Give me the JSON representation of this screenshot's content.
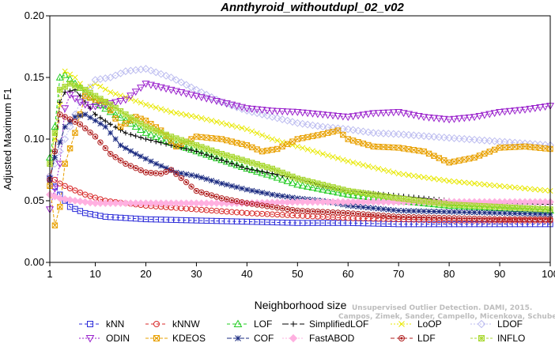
{
  "chart_data": {
    "type": "line",
    "title": "Annthyroid_withoutdupl_02_v02",
    "xlabel": "Neighborhood size",
    "ylabel": "Adjusted Maximum F1",
    "xlim": [
      1,
      100
    ],
    "ylim": [
      0.0,
      0.2
    ],
    "xticks": [
      "1",
      "10",
      "20",
      "30",
      "40",
      "50",
      "60",
      "70",
      "80",
      "90",
      "100"
    ],
    "yticks": [
      "0.00",
      "0.05",
      "0.10",
      "0.15",
      "0.20"
    ],
    "grid": false,
    "legend_position": "bottom",
    "watermark": [
      "Unsupervised Outlier Detection. DAMI, 2015.",
      "Campos, Zimek, Sander, Campello, Micenkova, Schubert, Assent, Houle"
    ],
    "series": [
      {
        "name": "kNN",
        "color": "#2a2ad8",
        "marker": "square",
        "points": [
          [
            1,
            0.068
          ],
          [
            3,
            0.055
          ],
          [
            5,
            0.045
          ],
          [
            8,
            0.04
          ],
          [
            12,
            0.037
          ],
          [
            20,
            0.035
          ],
          [
            30,
            0.034
          ],
          [
            40,
            0.033
          ],
          [
            50,
            0.032
          ],
          [
            60,
            0.032
          ],
          [
            70,
            0.031
          ],
          [
            80,
            0.031
          ],
          [
            90,
            0.031
          ],
          [
            100,
            0.031
          ]
        ]
      },
      {
        "name": "kNNW",
        "color": "#d82a2a",
        "marker": "circle",
        "points": [
          [
            1,
            0.07
          ],
          [
            3,
            0.064
          ],
          [
            5,
            0.06
          ],
          [
            8,
            0.055
          ],
          [
            12,
            0.05
          ],
          [
            20,
            0.046
          ],
          [
            30,
            0.043
          ],
          [
            40,
            0.04
          ],
          [
            50,
            0.038
          ],
          [
            60,
            0.036
          ],
          [
            70,
            0.035
          ],
          [
            80,
            0.034
          ],
          [
            90,
            0.034
          ],
          [
            100,
            0.034
          ]
        ]
      },
      {
        "name": "LOF",
        "color": "#22cc22",
        "marker": "triangle-up",
        "points": [
          [
            1,
            0.085
          ],
          [
            2,
            0.11
          ],
          [
            3,
            0.15
          ],
          [
            4,
            0.152
          ],
          [
            6,
            0.145
          ],
          [
            8,
            0.138
          ],
          [
            10,
            0.13
          ],
          [
            13,
            0.122
          ],
          [
            16,
            0.115
          ],
          [
            20,
            0.105
          ],
          [
            25,
            0.097
          ],
          [
            30,
            0.09
          ],
          [
            35,
            0.083
          ],
          [
            40,
            0.076
          ],
          [
            45,
            0.07
          ],
          [
            50,
            0.063
          ],
          [
            60,
            0.055
          ],
          [
            70,
            0.05
          ],
          [
            80,
            0.046
          ],
          [
            90,
            0.044
          ],
          [
            100,
            0.042
          ]
        ]
      },
      {
        "name": "SimplifiedLOF",
        "color": "#000000",
        "marker": "plus",
        "points": [
          [
            1,
            0.065
          ],
          [
            2,
            0.09
          ],
          [
            3,
            0.13
          ],
          [
            4,
            0.138
          ],
          [
            6,
            0.14
          ],
          [
            8,
            0.13
          ],
          [
            10,
            0.12
          ],
          [
            13,
            0.112
          ],
          [
            16,
            0.105
          ],
          [
            20,
            0.1
          ],
          [
            25,
            0.095
          ],
          [
            30,
            0.09
          ],
          [
            35,
            0.083
          ],
          [
            40,
            0.076
          ],
          [
            45,
            0.072
          ],
          [
            50,
            0.068
          ],
          [
            55,
            0.062
          ],
          [
            60,
            0.058
          ],
          [
            70,
            0.054
          ],
          [
            80,
            0.05
          ],
          [
            90,
            0.048
          ],
          [
            100,
            0.047
          ]
        ]
      },
      {
        "name": "LoOP",
        "color": "#e8e800",
        "marker": "x",
        "points": [
          [
            1,
            0.08
          ],
          [
            2,
            0.1
          ],
          [
            4,
            0.155
          ],
          [
            6,
            0.15
          ],
          [
            8,
            0.14
          ],
          [
            10,
            0.145
          ],
          [
            13,
            0.138
          ],
          [
            16,
            0.134
          ],
          [
            20,
            0.128
          ],
          [
            25,
            0.122
          ],
          [
            30,
            0.118
          ],
          [
            35,
            0.113
          ],
          [
            40,
            0.108
          ],
          [
            45,
            0.1
          ],
          [
            50,
            0.094
          ],
          [
            55,
            0.088
          ],
          [
            60,
            0.082
          ],
          [
            65,
            0.077
          ],
          [
            70,
            0.072
          ],
          [
            80,
            0.066
          ],
          [
            90,
            0.062
          ],
          [
            100,
            0.058
          ]
        ]
      },
      {
        "name": "LDOF",
        "color": "#bdbdf0",
        "marker": "diamond",
        "points": [
          [
            1,
            0.07
          ],
          [
            4,
            0.1
          ],
          [
            7,
            0.13
          ],
          [
            10,
            0.148
          ],
          [
            13,
            0.15
          ],
          [
            16,
            0.155
          ],
          [
            20,
            0.157
          ],
          [
            25,
            0.15
          ],
          [
            30,
            0.14
          ],
          [
            35,
            0.13
          ],
          [
            40,
            0.123
          ],
          [
            45,
            0.118
          ],
          [
            50,
            0.113
          ],
          [
            55,
            0.11
          ],
          [
            60,
            0.108
          ],
          [
            65,
            0.105
          ],
          [
            70,
            0.104
          ],
          [
            80,
            0.101
          ],
          [
            90,
            0.098
          ],
          [
            100,
            0.095
          ]
        ]
      },
      {
        "name": "ODIN",
        "color": "#9a22cc",
        "marker": "triangle-down",
        "points": [
          [
            1,
            0.043
          ],
          [
            2,
            0.06
          ],
          [
            3,
            0.08
          ],
          [
            4,
            0.125
          ],
          [
            5,
            0.136
          ],
          [
            7,
            0.13
          ],
          [
            9,
            0.126
          ],
          [
            12,
            0.128
          ],
          [
            16,
            0.132
          ],
          [
            20,
            0.145
          ],
          [
            25,
            0.14
          ],
          [
            30,
            0.135
          ],
          [
            35,
            0.13
          ],
          [
            40,
            0.125
          ],
          [
            45,
            0.123
          ],
          [
            50,
            0.122
          ],
          [
            55,
            0.12
          ],
          [
            60,
            0.118
          ],
          [
            65,
            0.121
          ],
          [
            70,
            0.122
          ],
          [
            75,
            0.118
          ],
          [
            80,
            0.116
          ],
          [
            85,
            0.118
          ],
          [
            90,
            0.122
          ],
          [
            95,
            0.124
          ],
          [
            100,
            0.127
          ]
        ]
      },
      {
        "name": "KDEOS",
        "color": "#e8a000",
        "marker": "square-x",
        "points": [
          [
            1,
            0.062
          ],
          [
            2,
            0.03
          ],
          [
            3,
            0.045
          ],
          [
            4,
            0.08
          ],
          [
            6,
            0.105
          ],
          [
            8,
            0.135
          ],
          [
            10,
            0.132
          ],
          [
            12,
            0.13
          ],
          [
            15,
            0.11
          ],
          [
            18,
            0.118
          ],
          [
            20,
            0.115
          ],
          [
            23,
            0.107
          ],
          [
            26,
            0.094
          ],
          [
            30,
            0.102
          ],
          [
            35,
            0.1
          ],
          [
            40,
            0.095
          ],
          [
            43,
            0.09
          ],
          [
            46,
            0.092
          ],
          [
            50,
            0.1
          ],
          [
            55,
            0.104
          ],
          [
            58,
            0.107
          ],
          [
            60,
            0.1
          ],
          [
            65,
            0.094
          ],
          [
            70,
            0.093
          ],
          [
            75,
            0.09
          ],
          [
            80,
            0.081
          ],
          [
            85,
            0.085
          ],
          [
            90,
            0.093
          ],
          [
            95,
            0.094
          ],
          [
            100,
            0.092
          ]
        ]
      },
      {
        "name": "COF",
        "color": "#1a2a80",
        "marker": "star",
        "points": [
          [
            1,
            0.068
          ],
          [
            2,
            0.085
          ],
          [
            4,
            0.11
          ],
          [
            6,
            0.118
          ],
          [
            8,
            0.12
          ],
          [
            10,
            0.115
          ],
          [
            12,
            0.11
          ],
          [
            15,
            0.095
          ],
          [
            18,
            0.088
          ],
          [
            22,
            0.08
          ],
          [
            26,
            0.073
          ],
          [
            30,
            0.07
          ],
          [
            35,
            0.064
          ],
          [
            40,
            0.059
          ],
          [
            45,
            0.055
          ],
          [
            50,
            0.052
          ],
          [
            55,
            0.05
          ],
          [
            60,
            0.046
          ],
          [
            70,
            0.042
          ],
          [
            80,
            0.041
          ],
          [
            90,
            0.04
          ],
          [
            100,
            0.039
          ]
        ]
      },
      {
        "name": "FastABOD",
        "color": "#ffb0e0",
        "marker": "diamond-filled",
        "points": [
          [
            1,
            0.055
          ],
          [
            3,
            0.052
          ],
          [
            6,
            0.05
          ],
          [
            10,
            0.048
          ],
          [
            20,
            0.048
          ],
          [
            30,
            0.048
          ],
          [
            40,
            0.048
          ],
          [
            50,
            0.049
          ],
          [
            60,
            0.049
          ],
          [
            70,
            0.049
          ],
          [
            80,
            0.049
          ],
          [
            90,
            0.049
          ],
          [
            100,
            0.049
          ]
        ]
      },
      {
        "name": "LDF",
        "color": "#b02020",
        "marker": "circle-filled",
        "points": [
          [
            1,
            0.067
          ],
          [
            2,
            0.09
          ],
          [
            3,
            0.12
          ],
          [
            5,
            0.116
          ],
          [
            7,
            0.112
          ],
          [
            10,
            0.102
          ],
          [
            13,
            0.088
          ],
          [
            16,
            0.08
          ],
          [
            20,
            0.073
          ],
          [
            23,
            0.072
          ],
          [
            25,
            0.075
          ],
          [
            28,
            0.065
          ],
          [
            30,
            0.058
          ],
          [
            35,
            0.052
          ],
          [
            40,
            0.048
          ],
          [
            45,
            0.045
          ],
          [
            50,
            0.042
          ],
          [
            60,
            0.04
          ],
          [
            70,
            0.037
          ],
          [
            80,
            0.036
          ],
          [
            90,
            0.035
          ],
          [
            100,
            0.035
          ]
        ]
      },
      {
        "name": "INFLO",
        "color": "#a8d830",
        "marker": "square-star",
        "points": [
          [
            1,
            0.08
          ],
          [
            2,
            0.105
          ],
          [
            3,
            0.14
          ],
          [
            5,
            0.145
          ],
          [
            8,
            0.14
          ],
          [
            10,
            0.135
          ],
          [
            13,
            0.128
          ],
          [
            16,
            0.12
          ],
          [
            20,
            0.11
          ],
          [
            25,
            0.102
          ],
          [
            30,
            0.095
          ],
          [
            35,
            0.088
          ],
          [
            40,
            0.082
          ],
          [
            45,
            0.076
          ],
          [
            50,
            0.068
          ],
          [
            60,
            0.058
          ],
          [
            70,
            0.052
          ],
          [
            80,
            0.047
          ],
          [
            90,
            0.045
          ],
          [
            100,
            0.043
          ]
        ]
      }
    ]
  }
}
